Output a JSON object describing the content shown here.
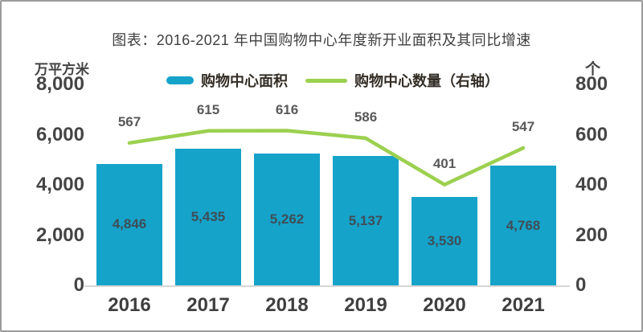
{
  "title": "图表：2016-2021 年中国购物中心年度新开业面积及其同比增速",
  "left_axis": {
    "unit": "万平方米",
    "ticks": [
      "8,000",
      "6,000",
      "4,000",
      "2,000",
      "0"
    ],
    "max": 8000
  },
  "right_axis": {
    "unit": "个",
    "ticks": [
      "800",
      "600",
      "400",
      "200",
      "0"
    ],
    "max": 800
  },
  "colors": {
    "bar": "#16A3CA",
    "line": "#9CD04F",
    "axis_line": "#d6d6d6"
  },
  "chart_data": {
    "type": "bar",
    "subtype": "bar+line combo, dual axis",
    "title": "图表：2016-2021 年中国购物中心年度新开业面积及其同比增速",
    "categories": [
      "2016",
      "2017",
      "2018",
      "2019",
      "2020",
      "2021"
    ],
    "series": [
      {
        "name": "购物中心面积",
        "type": "bar",
        "axis": "left",
        "color": "#16A3CA",
        "values": [
          4846,
          5435,
          5262,
          5137,
          3530,
          4768
        ],
        "labels": [
          "4,846",
          "5,435",
          "5,262",
          "5,137",
          "3,530",
          "4,768"
        ]
      },
      {
        "name": "购物中心数量（右轴）",
        "type": "line",
        "axis": "right",
        "color": "#9CD04F",
        "values": [
          567,
          615,
          616,
          586,
          401,
          547
        ],
        "labels": [
          "567",
          "615",
          "616",
          "586",
          "401",
          "547"
        ]
      }
    ],
    "left_ylim": [
      0,
      8000
    ],
    "right_ylim": [
      0,
      800
    ],
    "left_ylabel": "万平方米",
    "right_ylabel": "个",
    "grid": false,
    "legend_position": "top"
  }
}
